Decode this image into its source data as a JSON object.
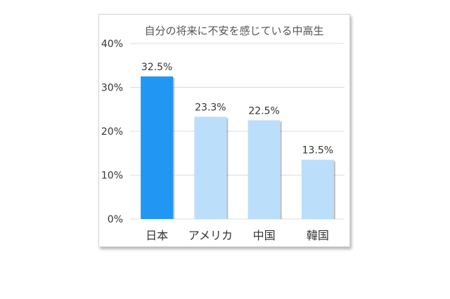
{
  "chart_data": {
    "type": "bar",
    "title": "自分の将来に不安を感じている中高生",
    "categories": [
      "日本",
      "アメリカ",
      "中国",
      "韓国"
    ],
    "values": [
      32.5,
      23.3,
      22.5,
      13.5
    ],
    "data_labels": [
      "32.5%",
      "23.3%",
      "22.5%",
      "13.5%"
    ],
    "yticks": [
      "0%",
      "10%",
      "20%",
      "30%",
      "40%"
    ],
    "ylim": [
      0,
      40
    ],
    "xlabel": "",
    "ylabel": "",
    "grid": true,
    "legend": "none",
    "colors": {
      "highlight": "#2196F3",
      "bar": "#BBDEFB",
      "grid": "#dcdcdc"
    },
    "highlight_index": 0
  }
}
